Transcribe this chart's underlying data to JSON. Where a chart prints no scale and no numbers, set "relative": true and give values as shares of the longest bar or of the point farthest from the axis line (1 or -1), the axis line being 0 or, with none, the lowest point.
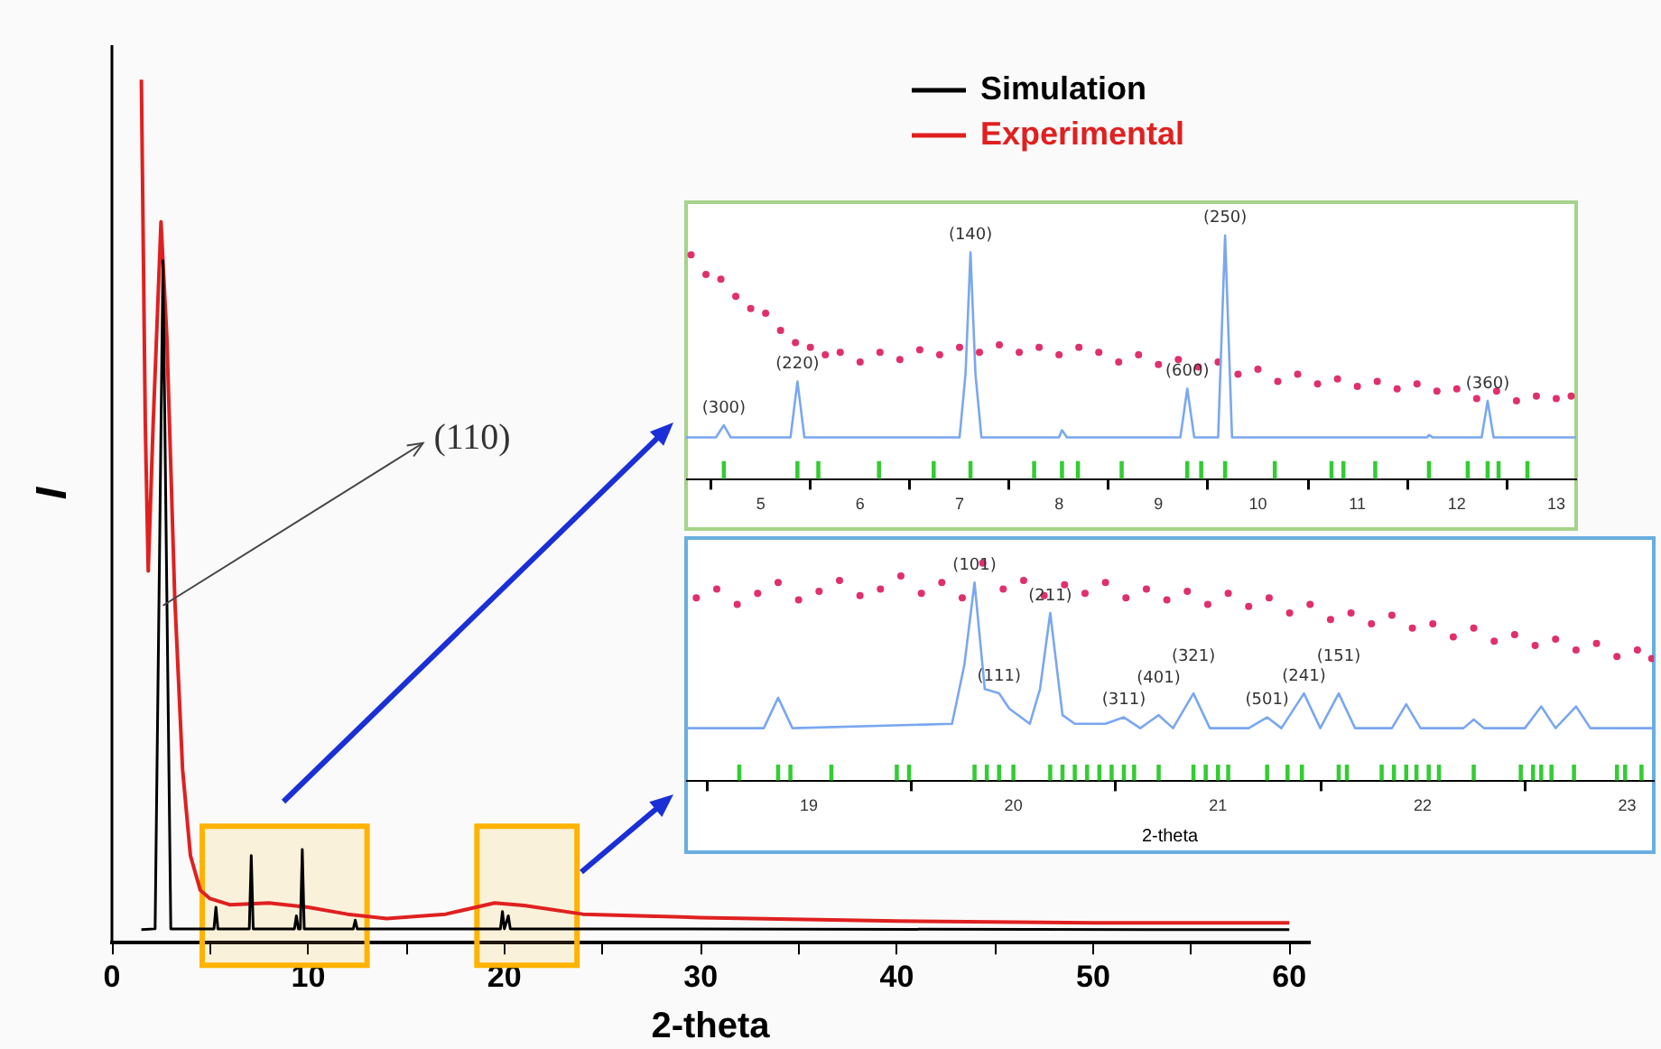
{
  "chart_data": [
    {
      "type": "line",
      "relative": true,
      "xlabel": "2-theta",
      "ylabel": "I",
      "xlim": [
        0,
        61
      ],
      "xticks": [
        0,
        {
          "value": 5,
          "label": null
        },
        10,
        {
          "value": 15,
          "label": null
        },
        20,
        {
          "value": 25,
          "label": null
        },
        30,
        {
          "value": 35,
          "label": null
        },
        40,
        {
          "value": 45,
          "label": null
        },
        50,
        {
          "value": 55,
          "label": null
        },
        60
      ],
      "legend": "top right",
      "series": [
        {
          "name": "Simulation",
          "color": "#000000",
          "x": [
            1.5,
            2.2,
            2.4,
            2.6,
            2.8,
            3.0,
            5.2,
            5.3,
            5.4,
            7.0,
            7.1,
            7.2,
            9.3,
            9.4,
            9.5,
            9.6,
            9.7,
            9.8,
            12.3,
            12.4,
            12.5,
            19.8,
            19.9,
            20.0,
            20.2,
            20.3,
            60
          ],
          "values": [
            0.014,
            0.015,
            0.4,
            0.79,
            0.4,
            0.015,
            0.015,
            0.04,
            0.015,
            0.015,
            0.1,
            0.015,
            0.015,
            0.03,
            0.015,
            0.015,
            0.107,
            0.015,
            0.015,
            0.025,
            0.015,
            0.015,
            0.035,
            0.015,
            0.03,
            0.015,
            0.014
          ]
        },
        {
          "name": "Experimental",
          "color": "#e02020",
          "x": [
            1.5,
            1.7,
            1.85,
            2.1,
            2.5,
            2.8,
            3.2,
            3.6,
            4.0,
            4.5,
            5,
            6,
            8,
            10,
            12,
            14,
            17,
            19.5,
            21,
            24,
            30,
            40,
            50,
            60
          ],
          "values": [
            1.0,
            0.6,
            0.43,
            0.6,
            0.835,
            0.7,
            0.4,
            0.2,
            0.1,
            0.06,
            0.05,
            0.043,
            0.045,
            0.04,
            0.032,
            0.027,
            0.032,
            0.045,
            0.042,
            0.032,
            0.028,
            0.024,
            0.022,
            0.022
          ]
        }
      ],
      "bands": [
        {
          "axis": "x",
          "from": 4.6,
          "to": 13,
          "color": "#ffb300"
        },
        {
          "axis": "x",
          "from": 18.6,
          "to": 23.7,
          "color": "#ffb300"
        }
      ],
      "annotations": [
        {
          "text": "(110)",
          "x": 2.6,
          "y": 0.39
        }
      ]
    },
    {
      "type": "scatter",
      "relative": true,
      "xlim": [
        4.25,
        13.2
      ],
      "xticks": [
        5,
        6,
        7,
        8,
        9,
        10,
        11,
        12,
        13
      ],
      "series": [
        {
          "color": "#e0306a",
          "x": [
            4.3,
            4.45,
            4.6,
            4.75,
            4.9,
            5.05,
            5.2,
            5.35,
            5.5,
            5.65,
            5.8,
            6.0,
            6.2,
            6.4,
            6.6,
            6.8,
            7.0,
            7.2,
            7.4,
            7.6,
            7.8,
            8.0,
            8.2,
            8.4,
            8.6,
            8.8,
            9.0,
            9.2,
            9.4,
            9.6,
            9.8,
            10.0,
            10.2,
            10.4,
            10.6,
            10.8,
            11.0,
            11.2,
            11.4,
            11.6,
            11.8,
            12.0,
            12.2,
            12.4,
            12.6,
            12.8,
            13.0,
            13.15
          ],
          "values": [
            0.92,
            0.84,
            0.82,
            0.75,
            0.7,
            0.68,
            0.61,
            0.56,
            0.54,
            0.51,
            0.52,
            0.48,
            0.52,
            0.49,
            0.53,
            0.51,
            0.54,
            0.52,
            0.55,
            0.52,
            0.54,
            0.51,
            0.54,
            0.52,
            0.48,
            0.51,
            0.47,
            0.49,
            0.46,
            0.48,
            0.43,
            0.45,
            0.4,
            0.43,
            0.39,
            0.41,
            0.38,
            0.4,
            0.37,
            0.39,
            0.36,
            0.37,
            0.33,
            0.36,
            0.32,
            0.34,
            0.33,
            0.34
          ]
        },
        {
          "type": "line",
          "color": "#7aa7f0",
          "x": [
            4.25,
            4.55,
            4.63,
            4.7,
            5.3,
            5.37,
            5.44,
            7.0,
            7.06,
            7.11,
            7.16,
            7.22,
            8.0,
            8.03,
            8.08,
            9.22,
            9.29,
            9.36,
            9.6,
            9.67,
            9.74,
            11.7,
            11.72,
            11.76,
            12.25,
            12.31,
            12.37,
            13.2
          ],
          "values": [
            0.17,
            0.17,
            0.22,
            0.17,
            0.17,
            0.4,
            0.17,
            0.17,
            0.43,
            0.93,
            0.43,
            0.17,
            0.17,
            0.2,
            0.17,
            0.17,
            0.37,
            0.17,
            0.17,
            1.0,
            0.17,
            0.17,
            0.18,
            0.17,
            0.17,
            0.32,
            0.17,
            0.17
          ]
        },
        {
          "type": "bar",
          "color": "#33cc33",
          "x": [
            4.63,
            5.37,
            5.58,
            6.19,
            6.74,
            7.11,
            7.75,
            8.03,
            8.19,
            8.63,
            9.29,
            9.43,
            9.67,
            10.17,
            10.74,
            10.86,
            11.18,
            11.72,
            12.11,
            12.31,
            12.42,
            12.71
          ],
          "values": [
            0.07,
            0.07,
            0.07,
            0.07,
            0.07,
            0.07,
            0.07,
            0.07,
            0.07,
            0.07,
            0.07,
            0.07,
            0.07,
            0.07,
            0.07,
            0.07,
            0.07,
            0.07,
            0.07,
            0.07,
            0.07,
            0.07
          ]
        }
      ],
      "annotations": [
        {
          "text": "(300)",
          "x": 4.63,
          "y": 0.22
        },
        {
          "text": "(220)",
          "x": 5.37,
          "y": 0.4
        },
        {
          "text": "(140)",
          "x": 7.11,
          "y": 0.93
        },
        {
          "text": "(600)",
          "x": 9.29,
          "y": 0.37
        },
        {
          "text": "(250)",
          "x": 9.67,
          "y": 1.0
        },
        {
          "text": "(360)",
          "x": 12.31,
          "y": 0.32
        }
      ]
    },
    {
      "type": "scatter",
      "relative": true,
      "xlabel": "2-theta",
      "xlim": [
        18.4,
        23.13
      ],
      "xticks": [
        19,
        20,
        21,
        22,
        23
      ],
      "series": [
        {
          "color": "#e0306a",
          "x": [
            18.45,
            18.55,
            18.65,
            18.75,
            18.85,
            18.95,
            19.05,
            19.15,
            19.25,
            19.35,
            19.45,
            19.55,
            19.65,
            19.75,
            19.85,
            19.95,
            20.05,
            20.15,
            20.25,
            20.35,
            20.45,
            20.55,
            20.65,
            20.75,
            20.85,
            20.95,
            21.05,
            21.15,
            21.25,
            21.35,
            21.45,
            21.55,
            21.65,
            21.75,
            21.85,
            21.95,
            22.05,
            22.15,
            22.25,
            22.35,
            22.45,
            22.55,
            22.65,
            22.75,
            22.85,
            22.95,
            23.05,
            23.12
          ],
          "values": [
            0.84,
            0.88,
            0.81,
            0.86,
            0.91,
            0.83,
            0.87,
            0.92,
            0.85,
            0.88,
            0.94,
            0.86,
            0.91,
            0.84,
            1.0,
            0.88,
            0.92,
            0.85,
            0.9,
            0.86,
            0.91,
            0.84,
            0.88,
            0.83,
            0.87,
            0.81,
            0.86,
            0.8,
            0.84,
            0.77,
            0.81,
            0.74,
            0.77,
            0.72,
            0.76,
            0.7,
            0.72,
            0.66,
            0.7,
            0.64,
            0.67,
            0.62,
            0.65,
            0.6,
            0.63,
            0.57,
            0.6,
            0.56
          ]
        },
        {
          "type": "line",
          "color": "#7aa7f0",
          "x": [
            18.4,
            18.78,
            18.85,
            18.92,
            19.7,
            19.76,
            19.81,
            19.86,
            19.93,
            19.98,
            20.08,
            20.13,
            20.18,
            20.24,
            20.3,
            20.45,
            20.54,
            20.62,
            20.71,
            20.78,
            20.88,
            20.96,
            21.15,
            21.24,
            21.31,
            21.42,
            21.5,
            21.59,
            21.67,
            21.85,
            21.92,
            21.99,
            22.2,
            22.25,
            22.3,
            22.5,
            22.58,
            22.65,
            22.75,
            22.82,
            23.13
          ],
          "values": [
            0.24,
            0.24,
            0.38,
            0.24,
            0.26,
            0.53,
            0.91,
            0.42,
            0.4,
            0.33,
            0.26,
            0.42,
            0.77,
            0.3,
            0.26,
            0.26,
            0.29,
            0.24,
            0.3,
            0.24,
            0.4,
            0.24,
            0.24,
            0.29,
            0.24,
            0.4,
            0.24,
            0.4,
            0.24,
            0.24,
            0.35,
            0.24,
            0.24,
            0.28,
            0.24,
            0.24,
            0.34,
            0.24,
            0.34,
            0.24,
            0.24
          ]
        },
        {
          "type": "bar",
          "color": "#33cc33",
          "x": [
            18.66,
            18.85,
            18.91,
            19.11,
            19.43,
            19.49,
            19.81,
            19.87,
            19.93,
            20.0,
            20.18,
            20.24,
            20.3,
            20.36,
            20.42,
            20.48,
            20.54,
            20.59,
            20.71,
            20.88,
            20.94,
            21.0,
            21.05,
            21.24,
            21.34,
            21.41,
            21.59,
            21.63,
            21.8,
            21.86,
            21.92,
            21.97,
            22.03,
            22.08,
            22.25,
            22.48,
            22.54,
            22.58,
            22.63,
            22.74,
            22.95,
            22.99,
            23.07
          ],
          "values": [
            0.07,
            0.07,
            0.07,
            0.07,
            0.07,
            0.07,
            0.07,
            0.07,
            0.07,
            0.07,
            0.07,
            0.07,
            0.07,
            0.07,
            0.07,
            0.07,
            0.07,
            0.07,
            0.07,
            0.07,
            0.07,
            0.07,
            0.07,
            0.07,
            0.07,
            0.07,
            0.07,
            0.07,
            0.07,
            0.07,
            0.07,
            0.07,
            0.07,
            0.07,
            0.07,
            0.07,
            0.07,
            0.07,
            0.07,
            0.07,
            0.07,
            0.07,
            0.07
          ]
        }
      ],
      "annotations": [
        {
          "text": "(101)",
          "x": 19.81,
          "y": 0.91
        },
        {
          "text": "(111)",
          "x": 19.93,
          "y": 0.4
        },
        {
          "text": "(211)",
          "x": 20.18,
          "y": 0.77
        },
        {
          "text": "(311)",
          "x": 20.54,
          "y": 0.29
        },
        {
          "text": "(401)",
          "x": 20.71,
          "y": 0.3
        },
        {
          "text": "(321)",
          "x": 20.88,
          "y": 0.4
        },
        {
          "text": "(501)",
          "x": 21.24,
          "y": 0.29
        },
        {
          "text": "(241)",
          "x": 21.42,
          "y": 0.4
        },
        {
          "text": "(151)",
          "x": 21.59,
          "y": 0.4
        }
      ]
    }
  ]
}
